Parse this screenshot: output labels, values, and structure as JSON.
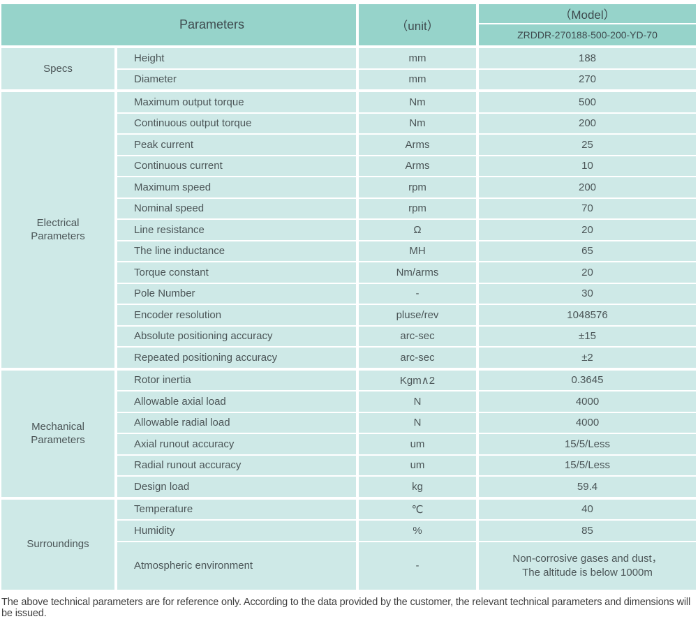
{
  "table": {
    "header": {
      "parameters": "Parameters",
      "unit": "（unit）",
      "model": "（Model）",
      "model_number": "ZRDDR-270188-500-200-YD-70"
    },
    "sections": [
      {
        "label": "Specs",
        "rows": [
          {
            "parameter": "Height",
            "unit": "mm",
            "value": "188"
          },
          {
            "parameter": "Diameter",
            "unit": "mm",
            "value": "270"
          }
        ]
      },
      {
        "label": "Electrical Parameters",
        "rows": [
          {
            "parameter": "Maximum output torque",
            "unit": "Nm",
            "value": "500"
          },
          {
            "parameter": "Continuous output torque",
            "unit": "Nm",
            "value": "200"
          },
          {
            "parameter": "Peak current",
            "unit": "Arms",
            "value": "25"
          },
          {
            "parameter": "Continuous current",
            "unit": "Arms",
            "value": "10"
          },
          {
            "parameter": "Maximum speed",
            "unit": "rpm",
            "value": "200"
          },
          {
            "parameter": "Nominal speed",
            "unit": "rpm",
            "value": "70"
          },
          {
            "parameter": "Line resistance",
            "unit": "Ω",
            "value": "20"
          },
          {
            "parameter": "The line inductance",
            "unit": "MH",
            "value": "65"
          },
          {
            "parameter": "Torque constant",
            "unit": "Nm/arms",
            "value": "20"
          },
          {
            "parameter": "Pole Number",
            "unit": "-",
            "value": "30"
          },
          {
            "parameter": "Encoder resolution",
            "unit": "pluse/rev",
            "value": "1048576"
          },
          {
            "parameter": "Absolute positioning accuracy",
            "unit": "arc-sec",
            "value": "±15"
          },
          {
            "parameter": "Repeated positioning accuracy",
            "unit": "arc-sec",
            "value": "±2"
          }
        ]
      },
      {
        "label": "Mechanical Parameters",
        "rows": [
          {
            "parameter": "Rotor inertia",
            "unit": "Kgm∧2",
            "value": "0.3645"
          },
          {
            "parameter": "Allowable axial load",
            "unit": "N",
            "value": "4000"
          },
          {
            "parameter": "Allowable radial load",
            "unit": "N",
            "value": "4000"
          },
          {
            "parameter": "Axial runout accuracy",
            "unit": "um",
            "value": "15/5/Less"
          },
          {
            "parameter": "Radial runout accuracy",
            "unit": "um",
            "value": "15/5/Less"
          },
          {
            "parameter": "Design load",
            "unit": "kg",
            "value": "59.4"
          }
        ]
      },
      {
        "label": "Surroundings",
        "rows": [
          {
            "parameter": "Temperature",
            "unit": "℃",
            "value": "40"
          },
          {
            "parameter": "Humidity",
            "unit": "%",
            "value": "85"
          },
          {
            "parameter": "Atmospheric environment",
            "unit": "-",
            "value": "Non-corrosive gases and dust，\nThe altitude is below 1000m",
            "tall": true
          }
        ]
      }
    ]
  },
  "footer": {
    "note": "The above technical parameters are for reference only. According to the data provided by the customer, the relevant technical parameters and dimensions will be issued."
  },
  "colors": {
    "header_bg": "#96d3ca",
    "cell_bg": "#cee9e7",
    "header_text": "#3e4a4e",
    "body_text": "#4b5557",
    "footer_text": "#3f3f3f"
  }
}
